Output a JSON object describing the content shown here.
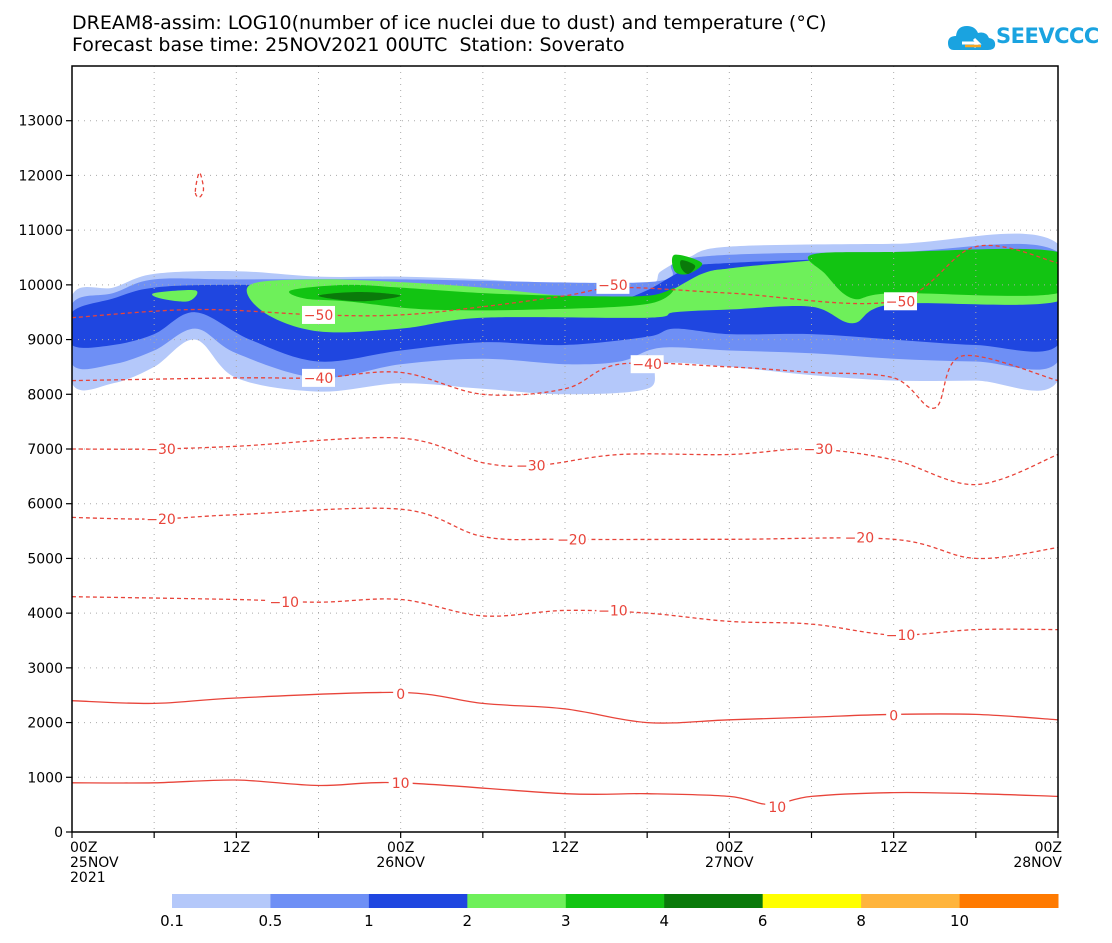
{
  "header": {
    "title_line1": "DREAM8-assim: LOG10(number of ice nuclei due to dust) and temperature (°C)",
    "title_line2": "Forecast base time: 25NOV2021 00UTC  Station: Soverato",
    "logo_text": "SEEVCCC"
  },
  "colors": {
    "temperature_line": "#e8443a",
    "grid": "#aaaaaa"
  },
  "chart_data": {
    "type": "contour",
    "xlabel": "",
    "ylabel": "",
    "xlim_hours": [
      0,
      72
    ],
    "ylim": [
      0,
      14000
    ],
    "y_ticks": [
      0,
      1000,
      2000,
      3000,
      4000,
      5000,
      6000,
      7000,
      8000,
      9000,
      10000,
      11000,
      12000,
      13000
    ],
    "x_ticks": [
      {
        "hour": 0,
        "label": "00Z",
        "sub1": "25NOV",
        "sub2": "2021"
      },
      {
        "hour": 12,
        "label": "12Z",
        "sub1": "",
        "sub2": ""
      },
      {
        "hour": 24,
        "label": "00Z",
        "sub1": "26NOV",
        "sub2": ""
      },
      {
        "hour": 36,
        "label": "12Z",
        "sub1": "",
        "sub2": ""
      },
      {
        "hour": 48,
        "label": "00Z",
        "sub1": "27NOV",
        "sub2": ""
      },
      {
        "hour": 60,
        "label": "12Z",
        "sub1": "",
        "sub2": ""
      },
      {
        "hour": 72,
        "label": "00Z",
        "sub1": "28NOV",
        "sub2": ""
      }
    ],
    "grid": true,
    "colorbar": {
      "levels": [
        "0.1",
        "0.5",
        "1",
        "2",
        "3",
        "4",
        "6",
        "8",
        "10"
      ],
      "colors": [
        "#b4c8fa",
        "#6e8ff5",
        "#1f46e0",
        "#6ef05a",
        "#12c412",
        "#0a7a0a",
        "#ffff00",
        "#ffb43c",
        "#ff7a00"
      ]
    },
    "filled_contours": [
      {
        "level_index": 0,
        "points": [
          [
            0,
            9800
          ],
          [
            3,
            9950
          ],
          [
            6,
            10200
          ],
          [
            12,
            10250
          ],
          [
            18,
            10150
          ],
          [
            24,
            10150
          ],
          [
            30,
            10100
          ],
          [
            36,
            10000
          ],
          [
            42,
            10000
          ],
          [
            43,
            10250
          ],
          [
            45,
            10500
          ],
          [
            48,
            10700
          ],
          [
            60,
            10750
          ],
          [
            72,
            10750
          ],
          [
            72,
            8250
          ],
          [
            66,
            8250
          ],
          [
            60,
            8250
          ],
          [
            54,
            8350
          ],
          [
            48,
            8500
          ],
          [
            43,
            8550
          ],
          [
            42,
            8100
          ],
          [
            36,
            8000
          ],
          [
            30,
            8100
          ],
          [
            24,
            8200
          ],
          [
            18,
            8050
          ],
          [
            12,
            8300
          ],
          [
            9,
            9000
          ],
          [
            6,
            8500
          ],
          [
            3,
            8200
          ],
          [
            0,
            8200
          ]
        ]
      },
      {
        "level_index": 1,
        "points": [
          [
            0,
            9650
          ],
          [
            3,
            9850
          ],
          [
            6,
            10100
          ],
          [
            12,
            10100
          ],
          [
            24,
            10100
          ],
          [
            42,
            10050
          ],
          [
            44,
            10400
          ],
          [
            48,
            10550
          ],
          [
            60,
            10600
          ],
          [
            72,
            10600
          ],
          [
            72,
            8600
          ],
          [
            66,
            8600
          ],
          [
            60,
            8650
          ],
          [
            54,
            8750
          ],
          [
            48,
            8800
          ],
          [
            43,
            8850
          ],
          [
            40,
            8600
          ],
          [
            36,
            8550
          ],
          [
            30,
            8650
          ],
          [
            24,
            8550
          ],
          [
            18,
            8300
          ],
          [
            12,
            8750
          ],
          [
            9,
            9200
          ],
          [
            6,
            8800
          ],
          [
            3,
            8550
          ],
          [
            0,
            8550
          ]
        ]
      },
      {
        "level_index": 2,
        "points": [
          [
            0,
            9500
          ],
          [
            3,
            9750
          ],
          [
            6,
            9950
          ],
          [
            12,
            10000
          ],
          [
            24,
            9950
          ],
          [
            30,
            9850
          ],
          [
            36,
            9750
          ],
          [
            40,
            9750
          ],
          [
            42,
            9900
          ],
          [
            45,
            10300
          ],
          [
            48,
            10400
          ],
          [
            60,
            10500
          ],
          [
            72,
            10500
          ],
          [
            72,
            8900
          ],
          [
            66,
            8900
          ],
          [
            60,
            9000
          ],
          [
            54,
            9100
          ],
          [
            48,
            9100
          ],
          [
            44,
            9200
          ],
          [
            42,
            9050
          ],
          [
            36,
            8900
          ],
          [
            30,
            8950
          ],
          [
            24,
            8800
          ],
          [
            18,
            8600
          ],
          [
            13,
            9000
          ],
          [
            9,
            9500
          ],
          [
            6,
            9100
          ],
          [
            3,
            8900
          ],
          [
            0,
            8900
          ]
        ]
      },
      {
        "level_index": 3,
        "points": [
          [
            6,
            9850
          ],
          [
            9,
            9900
          ],
          [
            8.5,
            9700
          ],
          [
            6.5,
            9750
          ]
        ]
      },
      {
        "level_index": 3,
        "points": [
          [
            13,
            10000
          ],
          [
            18,
            10100
          ],
          [
            24,
            10050
          ],
          [
            30,
            9950
          ],
          [
            36,
            9800
          ],
          [
            42,
            9750
          ],
          [
            46,
            10200
          ],
          [
            48,
            10300
          ],
          [
            52,
            10400
          ],
          [
            60,
            10550
          ],
          [
            72,
            10550
          ],
          [
            72,
            9700
          ],
          [
            60,
            9650
          ],
          [
            57,
            9300
          ],
          [
            54,
            9600
          ],
          [
            48,
            9550
          ],
          [
            44,
            9500
          ],
          [
            42,
            9400
          ],
          [
            30,
            9400
          ],
          [
            24,
            9200
          ],
          [
            18,
            9150
          ],
          [
            14,
            9500
          ]
        ]
      },
      {
        "level_index": 4,
        "points": [
          [
            16,
            9900
          ],
          [
            20,
            10000
          ],
          [
            24,
            9950
          ],
          [
            30,
            9850
          ],
          [
            36,
            9800
          ],
          [
            42,
            9800
          ],
          [
            44,
            9950
          ],
          [
            42,
            9650
          ],
          [
            34,
            9550
          ],
          [
            26,
            9550
          ],
          [
            20,
            9700
          ],
          [
            17,
            9750
          ]
        ]
      },
      {
        "level_index": 4,
        "points": [
          [
            44,
            10550
          ],
          [
            46,
            10400
          ],
          [
            45,
            10200
          ],
          [
            44,
            10250
          ]
        ]
      },
      {
        "level_index": 4,
        "points": [
          [
            54,
            10550
          ],
          [
            60,
            10600
          ],
          [
            72,
            10600
          ],
          [
            72,
            9850
          ],
          [
            60,
            9850
          ],
          [
            57,
            9750
          ],
          [
            55,
            10200
          ]
        ]
      },
      {
        "level_index": 5,
        "points": [
          [
            18,
            9800
          ],
          [
            21,
            9870
          ],
          [
            24,
            9800
          ],
          [
            21,
            9700
          ]
        ]
      },
      {
        "level_index": 5,
        "points": [
          [
            44.5,
            10450
          ],
          [
            45.5,
            10350
          ],
          [
            45,
            10200
          ],
          [
            44.5,
            10300
          ]
        ]
      }
    ],
    "temperature_contours": [
      {
        "value": -50,
        "style": "dashed",
        "points": [
          [
            0,
            9400
          ],
          [
            9,
            9550
          ],
          [
            18,
            9450
          ],
          [
            24,
            9450
          ],
          [
            30,
            9600
          ],
          [
            36,
            9800
          ],
          [
            40,
            9950
          ],
          [
            48,
            9850
          ],
          [
            60,
            9700
          ],
          [
            66,
            10700
          ],
          [
            72,
            10400
          ]
        ],
        "labels": [
          {
            "text": "-50",
            "x": 18,
            "y": 9450
          },
          {
            "text": "-50",
            "x": 39.5,
            "y": 10000
          },
          {
            "text": "-50",
            "x": 60.5,
            "y": 9700
          }
        ]
      },
      {
        "level_placeholder": true,
        "value": -40,
        "style": "dashed",
        "points": [
          [
            0,
            8250
          ],
          [
            12,
            8300
          ],
          [
            18,
            8300
          ],
          [
            24,
            8400
          ],
          [
            30,
            8000
          ],
          [
            36,
            8100
          ],
          [
            40,
            8550
          ],
          [
            48,
            8500
          ],
          [
            54,
            8400
          ],
          [
            60,
            8300
          ],
          [
            63,
            7750
          ],
          [
            65,
            8700
          ],
          [
            72,
            8250
          ]
        ],
        "labels": [
          {
            "text": "-40",
            "x": 18,
            "y": 8300
          },
          {
            "text": "-40",
            "x": 42,
            "y": 8550
          }
        ]
      },
      {
        "value": -30,
        "style": "dashed",
        "points": [
          [
            0,
            7000
          ],
          [
            6,
            7000
          ],
          [
            12,
            7050
          ],
          [
            24,
            7200
          ],
          [
            30,
            6750
          ],
          [
            34,
            6700
          ],
          [
            40,
            6900
          ],
          [
            48,
            6900
          ],
          [
            54,
            7000
          ],
          [
            60,
            6800
          ],
          [
            66,
            6350
          ],
          [
            72,
            6900
          ]
        ],
        "labels": [
          {
            "text": "-30",
            "x": 6.5,
            "y": 7000
          },
          {
            "text": "-30",
            "x": 33.5,
            "y": 6700
          },
          {
            "text": "-30",
            "x": 54.5,
            "y": 7000
          }
        ]
      },
      {
        "value": -20,
        "style": "dashed",
        "points": [
          [
            0,
            5750
          ],
          [
            6,
            5720
          ],
          [
            12,
            5800
          ],
          [
            24,
            5900
          ],
          [
            30,
            5400
          ],
          [
            36,
            5350
          ],
          [
            48,
            5350
          ],
          [
            60,
            5350
          ],
          [
            66,
            5000
          ],
          [
            72,
            5200
          ]
        ],
        "labels": [
          {
            "text": "-20",
            "x": 6.5,
            "y": 5720
          },
          {
            "text": "-20",
            "x": 36.5,
            "y": 5350
          },
          {
            "text": "-20",
            "x": 57.5,
            "y": 5380
          }
        ]
      },
      {
        "value": -10,
        "style": "dashed",
        "points": [
          [
            0,
            4300
          ],
          [
            12,
            4250
          ],
          [
            18,
            4200
          ],
          [
            24,
            4250
          ],
          [
            30,
            3950
          ],
          [
            36,
            4050
          ],
          [
            42,
            4000
          ],
          [
            48,
            3850
          ],
          [
            54,
            3800
          ],
          [
            60,
            3600
          ],
          [
            66,
            3700
          ],
          [
            72,
            3700
          ]
        ],
        "labels": [
          {
            "text": "-10",
            "x": 15.5,
            "y": 4200
          },
          {
            "text": "-10",
            "x": 39.5,
            "y": 4050
          },
          {
            "text": "-10",
            "x": 60.5,
            "y": 3600
          }
        ]
      },
      {
        "value": 0,
        "style": "solid",
        "points": [
          [
            0,
            2400
          ],
          [
            6,
            2350
          ],
          [
            12,
            2450
          ],
          [
            24,
            2550
          ],
          [
            30,
            2350
          ],
          [
            36,
            2250
          ],
          [
            42,
            2000
          ],
          [
            48,
            2050
          ],
          [
            54,
            2100
          ],
          [
            60,
            2150
          ],
          [
            66,
            2150
          ],
          [
            72,
            2050
          ]
        ],
        "labels": [
          {
            "text": "0",
            "x": 24,
            "y": 2520
          },
          {
            "text": "0",
            "x": 60,
            "y": 2130
          }
        ]
      },
      {
        "value": 10,
        "style": "solid",
        "points": [
          [
            0,
            900
          ],
          [
            6,
            900
          ],
          [
            12,
            950
          ],
          [
            18,
            850
          ],
          [
            24,
            900
          ],
          [
            36,
            700
          ],
          [
            42,
            700
          ],
          [
            48,
            650
          ],
          [
            51,
            500
          ],
          [
            54,
            650
          ],
          [
            60,
            720
          ],
          [
            66,
            700
          ],
          [
            72,
            650
          ]
        ],
        "labels": [
          {
            "text": "10",
            "x": 24,
            "y": 900
          },
          {
            "text": "10",
            "x": 51.5,
            "y": 460
          }
        ]
      },
      {
        "value": -50,
        "style": "dashed",
        "points": [
          [
            9,
            11700
          ],
          [
            9.3,
            12050
          ],
          [
            9.6,
            11750
          ],
          [
            9.3,
            11600
          ],
          [
            9,
            11700
          ]
        ],
        "labels": []
      }
    ]
  }
}
